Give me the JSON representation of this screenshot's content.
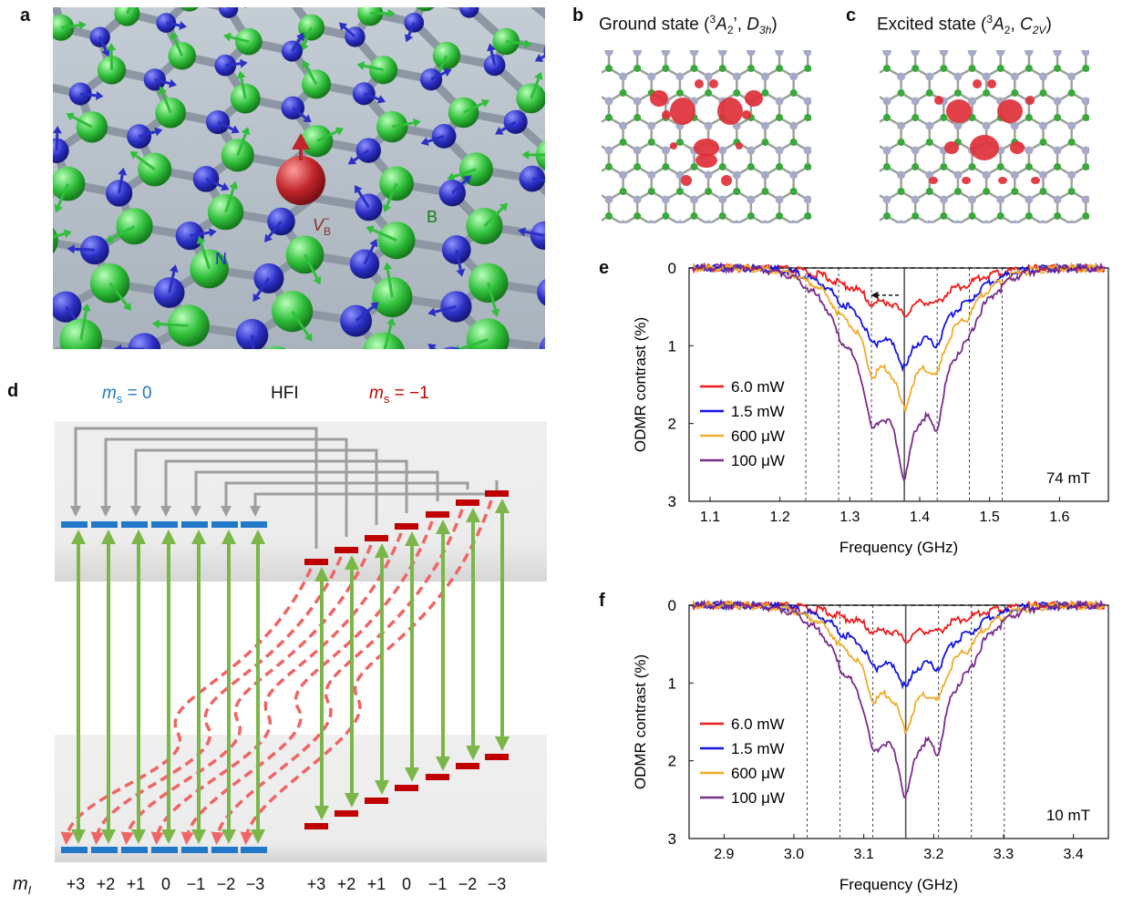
{
  "panels": {
    "a": {
      "letter": "a",
      "labels": {
        "vacancy": "V",
        "vacancy_sup": "−",
        "vacancy_sub": "B",
        "nitrogen": "N",
        "boron": "B"
      },
      "colors": {
        "nitrogen": "#2b2fc4",
        "boron": "#2fbf3a",
        "vacancy": "#c0262b",
        "bond": "#8c97a3",
        "background": "#b8c2cc"
      }
    },
    "b": {
      "letter": "b",
      "title_prefix": "Ground state (",
      "title_sup": "3",
      "title_term": "A",
      "title_term_sub": "2",
      "title_prime": "’, ",
      "title_group": "D",
      "title_group_sub": "3h",
      "title_suffix": ")"
    },
    "c": {
      "letter": "c",
      "title_prefix": "Excited state (",
      "title_sup": "3",
      "title_term": "A",
      "title_term_sub": "2",
      "title_sep": ", ",
      "title_group": "C",
      "title_group_sub": "2V",
      "title_suffix": ")"
    },
    "d": {
      "letter": "d",
      "ms0_label_m": "m",
      "ms0_label_sub": "s",
      "ms0_label_rest": " = 0",
      "hfi_label": "HFI",
      "ms1_label_m": "m",
      "ms1_label_sub": "s",
      "ms1_label_rest": " = −1",
      "mi_label_m": "m",
      "mi_label_sub": "I",
      "mi_values_left": [
        "+3",
        "+2",
        "+1",
        "0",
        "−1",
        "−2",
        "−3"
      ],
      "mi_values_right": [
        "+3",
        "+2",
        "+1",
        "0",
        "−1",
        "−2",
        "−3"
      ],
      "colors": {
        "ms0": "#1f78c8",
        "ms1": "#c00000",
        "green": "#7ab648",
        "dashed": "#f06464",
        "gray": "#9e9e9e"
      }
    }
  },
  "chart_data": [
    {
      "panel": "e",
      "type": "line",
      "xlabel": "Frequency (GHz)",
      "ylabel": "ODMR contrast (%)",
      "xlim": [
        1.07,
        1.67
      ],
      "ylim": [
        0,
        3
      ],
      "y_inverted": true,
      "xticks": [
        "1.1",
        "1.2",
        "1.3",
        "1.4",
        "1.5",
        "1.6"
      ],
      "yticks": [
        "0",
        "1",
        "2",
        "3"
      ],
      "annotation": "74 mT",
      "legend_position": "left",
      "reference_lines_x": [
        1.237,
        1.284,
        1.331,
        1.378,
        1.425,
        1.471,
        1.518
      ],
      "center_line_x": 1.378,
      "arrow": {
        "from_x": 1.37,
        "to_x": 1.33,
        "y": 0.35
      },
      "series": [
        {
          "name": "6.0 mW",
          "color": "#ee1c1c",
          "depth": 0.6
        },
        {
          "name": "1.5 mW",
          "color": "#1414e6",
          "depth": 1.28
        },
        {
          "name": "600 μW",
          "color": "#f0ac2c",
          "depth": 1.8
        },
        {
          "name": "100 μW",
          "color": "#7b2d8e",
          "depth": 2.68
        }
      ]
    },
    {
      "panel": "f",
      "type": "line",
      "xlabel": "Frequency (GHz)",
      "ylabel": "ODMR contrast (%)",
      "xlim": [
        2.85,
        3.45
      ],
      "ylim": [
        0,
        3
      ],
      "y_inverted": true,
      "xticks": [
        "2.9",
        "3.0",
        "3.1",
        "3.2",
        "3.3",
        "3.4"
      ],
      "yticks": [
        "0",
        "1",
        "2",
        "3"
      ],
      "annotation": "10 mT",
      "legend_position": "left",
      "reference_lines_x": [
        3.019,
        3.066,
        3.113,
        3.16,
        3.207,
        3.254,
        3.301
      ],
      "center_line_x": 3.16,
      "series": [
        {
          "name": "6.0 mW",
          "color": "#ee1c1c",
          "depth": 0.45
        },
        {
          "name": "1.5 mW",
          "color": "#1414e6",
          "depth": 1.05
        },
        {
          "name": "600 μW",
          "color": "#f0ac2c",
          "depth": 1.6
        },
        {
          "name": "100 μW",
          "color": "#7b2d8e",
          "depth": 2.45
        }
      ]
    }
  ]
}
